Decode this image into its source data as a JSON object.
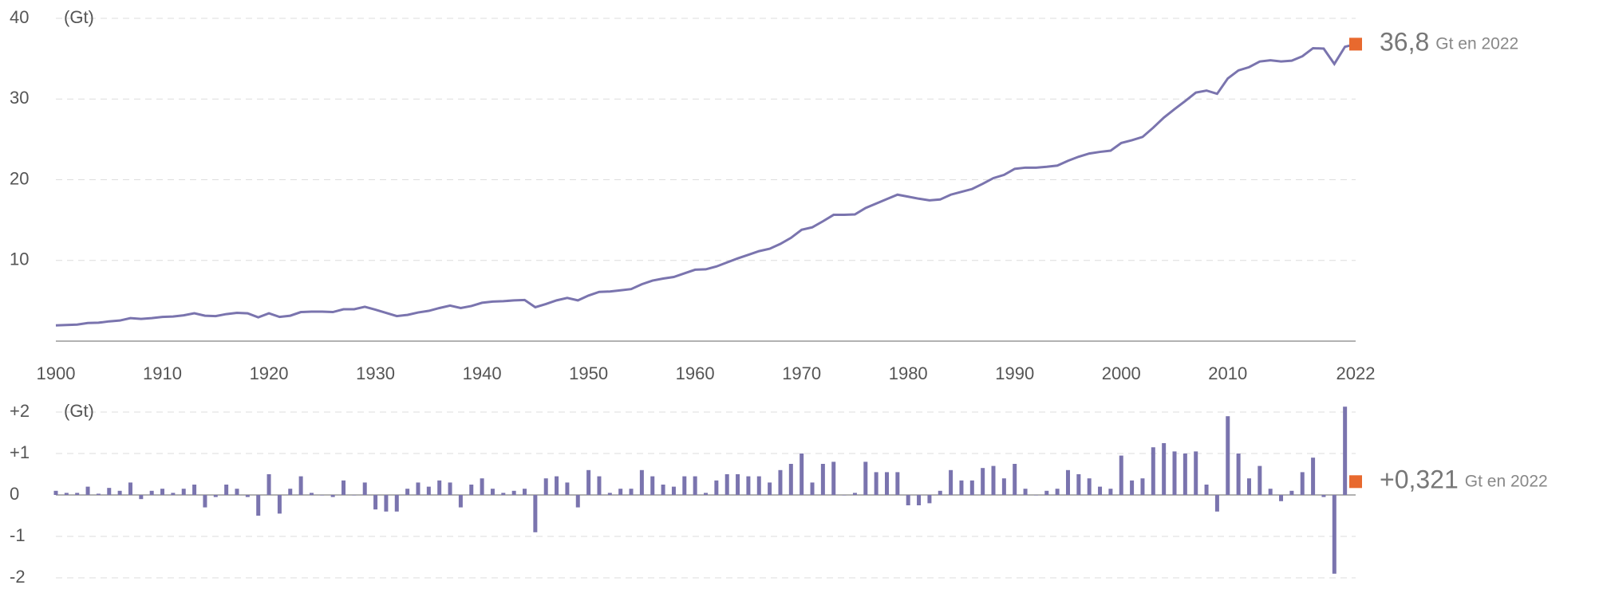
{
  "chart_data": [
    {
      "type": "line",
      "unit": "(Gt)",
      "x": [
        1900,
        1901,
        1902,
        1903,
        1904,
        1905,
        1906,
        1907,
        1908,
        1909,
        1910,
        1911,
        1912,
        1913,
        1914,
        1915,
        1916,
        1917,
        1918,
        1919,
        1920,
        1921,
        1922,
        1923,
        1924,
        1925,
        1926,
        1927,
        1928,
        1929,
        1930,
        1931,
        1932,
        1933,
        1934,
        1935,
        1936,
        1937,
        1938,
        1939,
        1940,
        1941,
        1942,
        1943,
        1944,
        1945,
        1946,
        1947,
        1948,
        1949,
        1950,
        1951,
        1952,
        1953,
        1954,
        1955,
        1956,
        1957,
        1958,
        1959,
        1960,
        1961,
        1962,
        1963,
        1964,
        1965,
        1966,
        1967,
        1968,
        1969,
        1970,
        1971,
        1972,
        1973,
        1974,
        1975,
        1976,
        1977,
        1978,
        1979,
        1980,
        1981,
        1982,
        1983,
        1984,
        1985,
        1986,
        1987,
        1988,
        1989,
        1990,
        1991,
        1992,
        1993,
        1994,
        1995,
        1996,
        1997,
        1998,
        1999,
        2000,
        2001,
        2002,
        2003,
        2004,
        2005,
        2006,
        2007,
        2008,
        2009,
        2010,
        2011,
        2012,
        2013,
        2014,
        2015,
        2016,
        2017,
        2018,
        2019,
        2020,
        2021,
        2022
      ],
      "series": [
        {
          "color": "#7a74ae",
          "values": [
            1.95,
            2.0,
            2.05,
            2.25,
            2.28,
            2.45,
            2.55,
            2.85,
            2.75,
            2.85,
            3.0,
            3.05,
            3.2,
            3.45,
            3.15,
            3.1,
            3.35,
            3.5,
            3.45,
            2.95,
            3.45,
            3.0,
            3.15,
            3.6,
            3.65,
            3.65,
            3.6,
            3.95,
            3.95,
            4.25,
            3.9,
            3.5,
            3.1,
            3.25,
            3.55,
            3.75,
            4.1,
            4.4,
            4.1,
            4.35,
            4.75,
            4.9,
            4.95,
            5.05,
            5.1,
            4.2,
            4.6,
            5.05,
            5.35,
            5.05,
            5.65,
            6.1,
            6.15,
            6.3,
            6.45,
            7.05,
            7.5,
            7.75,
            7.95,
            8.4,
            8.85,
            8.9,
            9.25,
            9.75,
            10.25,
            10.7,
            11.15,
            11.45,
            12.05,
            12.8,
            13.8,
            14.1,
            14.85,
            15.65,
            15.65,
            15.7,
            16.5,
            17.05,
            17.6,
            18.15,
            17.9,
            17.65,
            17.45,
            17.55,
            18.15,
            18.5,
            18.85,
            19.5,
            20.2,
            20.6,
            21.35,
            21.5,
            21.5,
            21.6,
            21.75,
            22.35,
            22.85,
            23.25,
            23.45,
            23.6,
            24.55,
            24.9,
            25.3,
            26.45,
            27.7,
            28.75,
            29.75,
            30.8,
            31.05,
            30.65,
            32.55,
            33.55,
            33.95,
            34.65,
            34.8,
            34.65,
            34.75,
            35.3,
            36.3,
            36.25,
            34.35,
            36.48,
            36.8
          ]
        }
      ],
      "xlim": [
        1900,
        2022
      ],
      "xticks": [
        1900,
        1910,
        1920,
        1930,
        1940,
        1950,
        1960,
        1970,
        1980,
        1990,
        2000,
        2010,
        2022
      ],
      "ylim": [
        0,
        40
      ],
      "yticks": [
        10,
        20,
        30,
        40
      ],
      "grid": true,
      "annotation": {
        "value": 36.8,
        "label": "36,8",
        "unit": "Gt en 2022",
        "color": "#e8692e"
      }
    },
    {
      "type": "bar",
      "unit": "(Gt)",
      "x": [
        1900,
        1901,
        1902,
        1903,
        1904,
        1905,
        1906,
        1907,
        1908,
        1909,
        1910,
        1911,
        1912,
        1913,
        1914,
        1915,
        1916,
        1917,
        1918,
        1919,
        1920,
        1921,
        1922,
        1923,
        1924,
        1925,
        1926,
        1927,
        1928,
        1929,
        1930,
        1931,
        1932,
        1933,
        1934,
        1935,
        1936,
        1937,
        1938,
        1939,
        1940,
        1941,
        1942,
        1943,
        1944,
        1945,
        1946,
        1947,
        1948,
        1949,
        1950,
        1951,
        1952,
        1953,
        1954,
        1955,
        1956,
        1957,
        1958,
        1959,
        1960,
        1961,
        1962,
        1963,
        1964,
        1965,
        1966,
        1967,
        1968,
        1969,
        1970,
        1971,
        1972,
        1973,
        1974,
        1975,
        1976,
        1977,
        1978,
        1979,
        1980,
        1981,
        1982,
        1983,
        1984,
        1985,
        1986,
        1987,
        1988,
        1989,
        1990,
        1991,
        1992,
        1993,
        1994,
        1995,
        1996,
        1997,
        1998,
        1999,
        2000,
        2001,
        2002,
        2003,
        2004,
        2005,
        2006,
        2007,
        2008,
        2009,
        2010,
        2011,
        2012,
        2013,
        2014,
        2015,
        2016,
        2017,
        2018,
        2019,
        2020,
        2021
      ],
      "series": [
        {
          "color": "#7a74ae",
          "values": [
            0.1,
            0.05,
            0.05,
            0.2,
            0.03,
            0.17,
            0.1,
            0.3,
            -0.1,
            0.1,
            0.15,
            0.05,
            0.15,
            0.25,
            -0.3,
            -0.05,
            0.25,
            0.15,
            -0.05,
            -0.5,
            0.5,
            -0.45,
            0.15,
            0.45,
            0.05,
            0,
            -0.05,
            0.35,
            0,
            0.3,
            -0.35,
            -0.4,
            -0.4,
            0.15,
            0.3,
            0.2,
            0.35,
            0.3,
            -0.3,
            0.25,
            0.4,
            0.15,
            0.05,
            0.1,
            0.15,
            -0.9,
            0.4,
            0.45,
            0.3,
            -0.3,
            0.6,
            0.45,
            0.05,
            0.15,
            0.15,
            0.6,
            0.45,
            0.25,
            0.2,
            0.45,
            0.45,
            0.05,
            0.35,
            0.5,
            0.5,
            0.45,
            0.45,
            0.3,
            0.6,
            0.75,
            1.0,
            0.3,
            0.75,
            0.8,
            0,
            0.05,
            0.8,
            0.55,
            0.55,
            0.55,
            -0.25,
            -0.25,
            -0.2,
            0.1,
            0.6,
            0.35,
            0.35,
            0.65,
            0.7,
            0.4,
            0.75,
            0.15,
            0,
            0.1,
            0.15,
            0.6,
            0.5,
            0.4,
            0.2,
            0.15,
            0.95,
            0.35,
            0.4,
            1.15,
            1.25,
            1.05,
            1.0,
            1.05,
            0.25,
            -0.4,
            1.9,
            1.0,
            0.4,
            0.7,
            0.15,
            -0.15,
            0.1,
            0.55,
            0.9,
            -0.05,
            -1.9,
            2.13
          ]
        }
      ],
      "xlim": [
        1900,
        2022
      ],
      "ylim": [
        -2,
        2
      ],
      "yticks": [
        {
          "value": 2,
          "label": "+2"
        },
        {
          "value": 1,
          "label": "+1"
        },
        0,
        -1,
        -2
      ],
      "grid": true,
      "annotation": {
        "x": 2022,
        "value": 0.321,
        "label": "+0,321",
        "unit": "Gt en 2022",
        "color": "#e8692e"
      }
    }
  ]
}
